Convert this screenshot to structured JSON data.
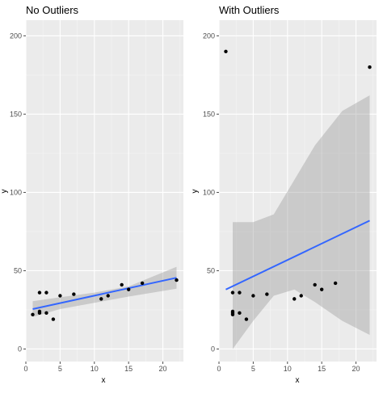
{
  "colors": {
    "panel_background": "#ebebeb",
    "gridline_major": "#ffffff",
    "gridline_minor": "#f5f5f5",
    "point": "#000000",
    "fit_line": "#3366ff",
    "confidence_band": "#999999",
    "tick_color": "#4d4d4d"
  },
  "chart_data": [
    {
      "type": "scatter",
      "title": "No Outliers",
      "xlabel": "x",
      "ylabel": "y",
      "xlim": [
        0,
        23
      ],
      "ylim": [
        -8,
        210
      ],
      "x_ticks": [
        0,
        5,
        10,
        15,
        20
      ],
      "y_ticks": [
        0,
        50,
        100,
        150,
        200
      ],
      "grid": true,
      "points": [
        {
          "x": 1,
          "y": 22
        },
        {
          "x": 2,
          "y": 24
        },
        {
          "x": 2,
          "y": 23
        },
        {
          "x": 2,
          "y": 36
        },
        {
          "x": 3,
          "y": 36
        },
        {
          "x": 3,
          "y": 23
        },
        {
          "x": 4,
          "y": 19
        },
        {
          "x": 5,
          "y": 34
        },
        {
          "x": 7,
          "y": 35
        },
        {
          "x": 11,
          "y": 32
        },
        {
          "x": 12,
          "y": 34
        },
        {
          "x": 14,
          "y": 41
        },
        {
          "x": 15,
          "y": 38
        },
        {
          "x": 17,
          "y": 42
        },
        {
          "x": 22,
          "y": 44
        }
      ],
      "fit_line": {
        "x": [
          1,
          22
        ],
        "y": [
          25.5,
          45.5
        ]
      },
      "confidence_band": {
        "x": [
          1,
          5,
          10,
          15,
          22
        ],
        "lower": [
          20.5,
          25.5,
          29.5,
          33.5,
          38.5
        ],
        "upper": [
          30.5,
          33,
          36,
          40,
          52.5
        ]
      }
    },
    {
      "type": "scatter",
      "title": "With Outliers",
      "xlabel": "x",
      "ylabel": "y",
      "xlim": [
        0,
        23
      ],
      "ylim": [
        -8,
        210
      ],
      "x_ticks": [
        0,
        5,
        10,
        15,
        20
      ],
      "y_ticks": [
        0,
        50,
        100,
        150,
        200
      ],
      "grid": true,
      "points": [
        {
          "x": 1,
          "y": 190
        },
        {
          "x": 2,
          "y": 24
        },
        {
          "x": 2,
          "y": 23
        },
        {
          "x": 2,
          "y": 22
        },
        {
          "x": 2,
          "y": 36
        },
        {
          "x": 3,
          "y": 36
        },
        {
          "x": 3,
          "y": 23
        },
        {
          "x": 4,
          "y": 19
        },
        {
          "x": 5,
          "y": 34
        },
        {
          "x": 7,
          "y": 35
        },
        {
          "x": 11,
          "y": 32
        },
        {
          "x": 12,
          "y": 34
        },
        {
          "x": 14,
          "y": 41
        },
        {
          "x": 15,
          "y": 38
        },
        {
          "x": 17,
          "y": 42
        },
        {
          "x": 22,
          "y": 180
        }
      ],
      "fit_line": {
        "x": [
          1,
          22
        ],
        "y": [
          38,
          82
        ]
      },
      "confidence_band": {
        "x": [
          2,
          5,
          8,
          11,
          14,
          18,
          22
        ],
        "lower": [
          0,
          18,
          34,
          38,
          30,
          18,
          9
        ],
        "upper": [
          81,
          81,
          86,
          108,
          130,
          152,
          162
        ]
      }
    }
  ]
}
